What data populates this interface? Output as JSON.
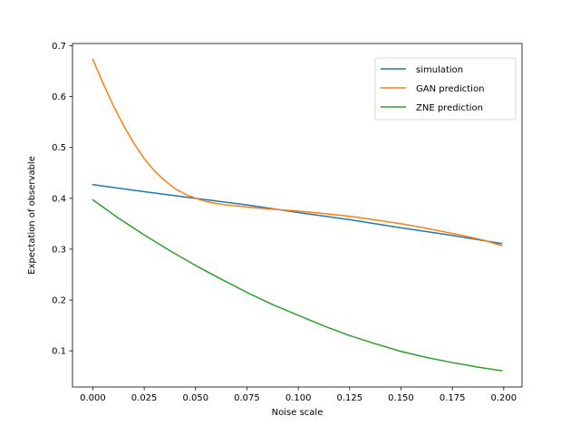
{
  "chart_data": {
    "type": "line",
    "title": "",
    "xlabel": "Noise scale",
    "ylabel": "Expectation of observable",
    "xlim": [
      -0.0099,
      0.2089
    ],
    "ylim": [
      0.029,
      0.7045
    ],
    "xticks": [
      0.0,
      0.025,
      0.05,
      0.075,
      0.1,
      0.125,
      0.15,
      0.175,
      0.2
    ],
    "xtick_labels": [
      "0.000",
      "0.025",
      "0.050",
      "0.075",
      "0.100",
      "0.125",
      "0.150",
      "0.175",
      "0.200"
    ],
    "yticks": [
      0.1,
      0.2,
      0.3,
      0.4,
      0.5,
      0.6,
      0.7
    ],
    "ytick_labels": [
      "0.1",
      "0.2",
      "0.3",
      "0.4",
      "0.5",
      "0.6",
      "0.7"
    ],
    "grid": false,
    "legend_position": "top-right",
    "series": [
      {
        "name": "simulation",
        "color": "#1f77b4",
        "x": [
          0.0,
          0.025,
          0.05,
          0.075,
          0.1,
          0.125,
          0.15,
          0.175,
          0.199
        ],
        "y": [
          0.427,
          0.413,
          0.4,
          0.387,
          0.372,
          0.358,
          0.342,
          0.327,
          0.311
        ]
      },
      {
        "name": "GAN prediction",
        "color": "#ff7f0e",
        "x": [
          0.0,
          0.005,
          0.01,
          0.015,
          0.02,
          0.025,
          0.03,
          0.035,
          0.04,
          0.045,
          0.05,
          0.055,
          0.06,
          0.065,
          0.07,
          0.075,
          0.08,
          0.09,
          0.1,
          0.11,
          0.12,
          0.13,
          0.14,
          0.15,
          0.16,
          0.17,
          0.18,
          0.19,
          0.199
        ],
        "y": [
          0.673,
          0.626,
          0.582,
          0.543,
          0.508,
          0.478,
          0.454,
          0.435,
          0.419,
          0.408,
          0.4,
          0.394,
          0.39,
          0.387,
          0.385,
          0.383,
          0.381,
          0.378,
          0.375,
          0.371,
          0.367,
          0.362,
          0.356,
          0.35,
          0.343,
          0.335,
          0.327,
          0.318,
          0.307
        ]
      },
      {
        "name": "ZNE prediction",
        "color": "#2ca02c",
        "x": [
          0.0,
          0.0125,
          0.025,
          0.0375,
          0.05,
          0.0625,
          0.075,
          0.0875,
          0.1,
          0.1125,
          0.125,
          0.1375,
          0.15,
          0.1625,
          0.175,
          0.1875,
          0.199
        ],
        "y": [
          0.397,
          0.361,
          0.328,
          0.297,
          0.268,
          0.241,
          0.215,
          0.191,
          0.17,
          0.149,
          0.13,
          0.114,
          0.099,
          0.087,
          0.077,
          0.068,
          0.061
        ]
      }
    ]
  }
}
